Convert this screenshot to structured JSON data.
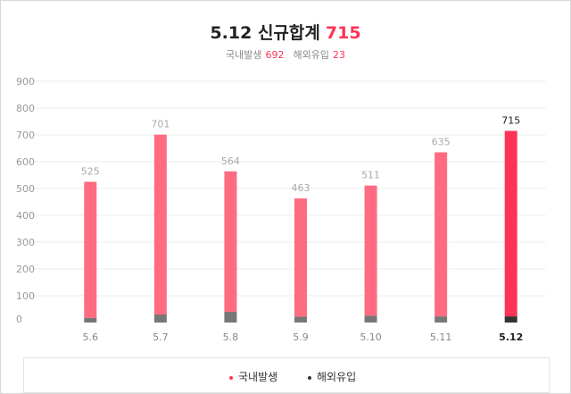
{
  "header": {
    "title_prefix": "5.12 신규합계",
    "title_total": "715",
    "domestic_label": "국내발생",
    "domestic_value": "692",
    "overseas_label": "해외유입",
    "overseas_value": "23"
  },
  "colors": {
    "domestic": "#ff6b81",
    "domestic_latest": "#ff3355",
    "overseas": "#777777",
    "overseas_latest": "#333333"
  },
  "chart_data": {
    "type": "bar",
    "stacked": true,
    "categories": [
      "5.6",
      "5.7",
      "5.8",
      "5.9",
      "5.10",
      "5.11",
      "5.12"
    ],
    "series": [
      {
        "name": "국내발생",
        "values": [
          508,
          671,
          524,
          441,
          485,
          612,
          692
        ]
      },
      {
        "name": "해외유입",
        "values": [
          17,
          30,
          40,
          22,
          26,
          23,
          23
        ]
      }
    ],
    "totals": [
      "525",
      "701",
      "564",
      "463",
      "511",
      "635",
      "715"
    ],
    "yticks": [
      "0",
      "100",
      "200",
      "300",
      "400",
      "500",
      "600",
      "700",
      "800",
      "900"
    ],
    "ylim": [
      0,
      900
    ],
    "highlight_last": true,
    "grid": true,
    "legend": "bottom",
    "legend_labels": [
      "국내발생",
      "해외유입"
    ]
  }
}
